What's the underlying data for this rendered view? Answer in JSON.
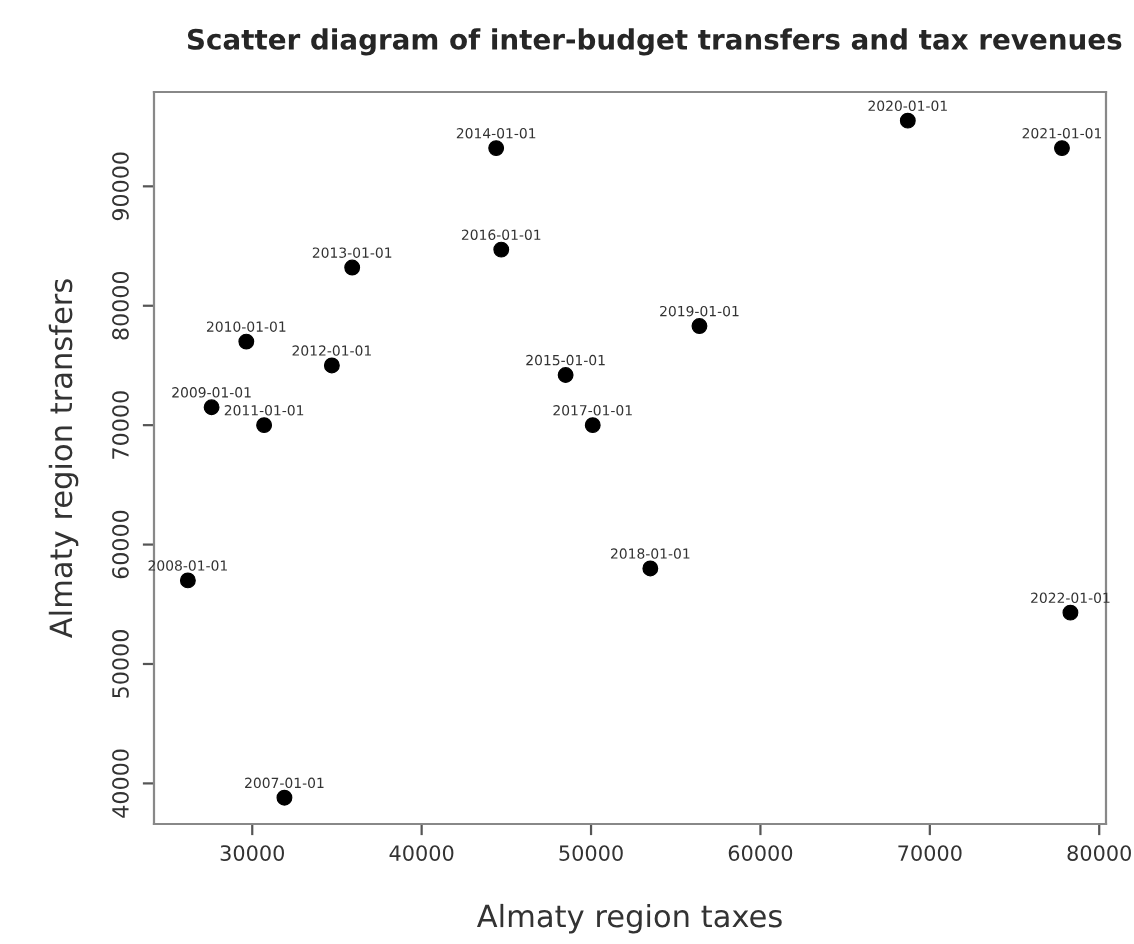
{
  "chart_data": {
    "type": "scatter",
    "title": "Scatter diagram of inter-budget transfers and tax revenues",
    "xlabel": "Almaty region taxes",
    "ylabel": "Almaty region transfers",
    "x": [
      31900,
      26200,
      27600,
      29650,
      30700,
      34700,
      35900,
      44400,
      48500,
      44700,
      50100,
      53500,
      56400,
      68700,
      77800,
      78300
    ],
    "series": [
      {
        "color": "#000000",
        "values": [
          38800,
          57000,
          71500,
          77000,
          70000,
          75000,
          83200,
          93200,
          74200,
          84700,
          70000,
          58000,
          78300,
          95500,
          93200,
          54300
        ]
      }
    ],
    "annotations": [
      {
        "text": "2007-01-01",
        "x": 31900,
        "y": 38800
      },
      {
        "text": "2008-01-01",
        "x": 26200,
        "y": 57000
      },
      {
        "text": "2009-01-01",
        "x": 27600,
        "y": 71500
      },
      {
        "text": "2010-01-01",
        "x": 29650,
        "y": 77000
      },
      {
        "text": "2011-01-01",
        "x": 30700,
        "y": 70000
      },
      {
        "text": "2012-01-01",
        "x": 34700,
        "y": 75000
      },
      {
        "text": "2013-01-01",
        "x": 35900,
        "y": 83200
      },
      {
        "text": "2014-01-01",
        "x": 44400,
        "y": 93200
      },
      {
        "text": "2015-01-01",
        "x": 48500,
        "y": 74200
      },
      {
        "text": "2016-01-01",
        "x": 44700,
        "y": 84700
      },
      {
        "text": "2017-01-01",
        "x": 50100,
        "y": 70000
      },
      {
        "text": "2018-01-01",
        "x": 53500,
        "y": 58000
      },
      {
        "text": "2019-01-01",
        "x": 56400,
        "y": 78300
      },
      {
        "text": "2020-01-01",
        "x": 68700,
        "y": 95500
      },
      {
        "text": "2021-01-01",
        "x": 77800,
        "y": 93200
      },
      {
        "text": "2022-01-01",
        "x": 78300,
        "y": 54300
      }
    ],
    "xlim": [
      24200,
      80400
    ],
    "ylim": [
      36600,
      97900
    ],
    "xticks": [
      30000,
      40000,
      50000,
      60000,
      70000,
      80000
    ],
    "yticks": [
      40000,
      50000,
      60000,
      70000,
      80000,
      90000
    ],
    "grid": false,
    "marker": "circle"
  }
}
